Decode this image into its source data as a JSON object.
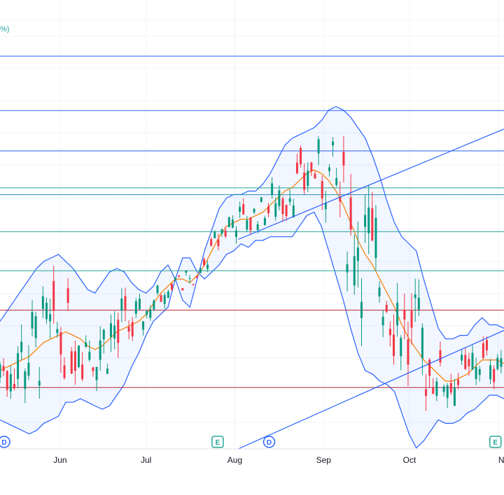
{
  "chart_data": {
    "type": "candlestick",
    "legend_fragment": "%)",
    "x_ticks": [
      {
        "label": "Jun",
        "day": 21
      },
      {
        "label": "Jul",
        "day": 51
      },
      {
        "label": "Aug",
        "day": 82
      },
      {
        "label": "Sep",
        "day": 113
      },
      {
        "label": "Oct",
        "day": 143
      },
      {
        "label": "No",
        "day": 174
      }
    ],
    "y_range": [
      0,
      100
    ],
    "x_range": [
      0,
      176
    ],
    "grid": true,
    "horizontal_levels": [
      {
        "y": 91.5,
        "color": "#2962ff"
      },
      {
        "y": 78.8,
        "color": "#2962ff"
      },
      {
        "y": 69.4,
        "color": "#2962ff"
      },
      {
        "y": 60.8,
        "color": "#26a69a"
      },
      {
        "y": 59.2,
        "color": "#26a69a"
      },
      {
        "y": 50.6,
        "color": "#26a69a"
      },
      {
        "y": 41.5,
        "color": "#26a69a"
      },
      {
        "y": 32.3,
        "color": "#b22833"
      },
      {
        "y": 14.3,
        "color": "#b22833"
      }
    ],
    "trend_channel": [
      {
        "x": [
          82,
          176
        ],
        "y": [
          48.8,
          74.5
        ]
      },
      {
        "x": [
          82,
          176
        ],
        "y": [
          0.0,
          27.6
        ]
      }
    ],
    "events": [
      {
        "label": "D",
        "day": 0,
        "color": "#2962ff"
      },
      {
        "label": "E",
        "day": 76,
        "color": "#26a69a"
      },
      {
        "label": "D",
        "day": 94,
        "color": "#2962ff"
      },
      {
        "label": "E",
        "day": 173,
        "color": "#26a69a"
      }
    ],
    "bollinger_upper_y": [
      46,
      49,
      52,
      55,
      58,
      61,
      63,
      64,
      65,
      63,
      61,
      58,
      55,
      54,
      57,
      60,
      61,
      60,
      57,
      55,
      54,
      56,
      60,
      62,
      58,
      52,
      50,
      58,
      66,
      72,
      78,
      81,
      82,
      82,
      83,
      83,
      85,
      88,
      92,
      96,
      98,
      99,
      100,
      101,
      103,
      106,
      107,
      106,
      104,
      101,
      98,
      93,
      87,
      80,
      74,
      70,
      68,
      66,
      58,
      51,
      44,
      41,
      41,
      42,
      42,
      45,
      47,
      45,
      45,
      44
    ],
    "bollinger_mid_y": [
      32,
      33,
      34,
      35,
      36,
      38,
      40,
      41,
      42,
      43,
      42,
      41,
      39,
      38,
      39,
      41,
      43,
      44,
      45,
      46,
      48,
      51,
      54,
      56,
      58,
      58,
      57,
      59,
      62,
      66,
      70,
      73,
      74,
      75,
      75,
      76,
      77,
      79,
      81,
      83,
      84,
      86,
      88,
      89,
      88,
      86,
      83,
      79,
      74,
      69,
      65,
      62,
      58,
      54,
      50,
      45,
      41,
      38,
      35,
      33,
      31,
      29,
      29,
      30,
      31,
      33,
      35,
      35,
      35,
      34
    ]
  }
}
